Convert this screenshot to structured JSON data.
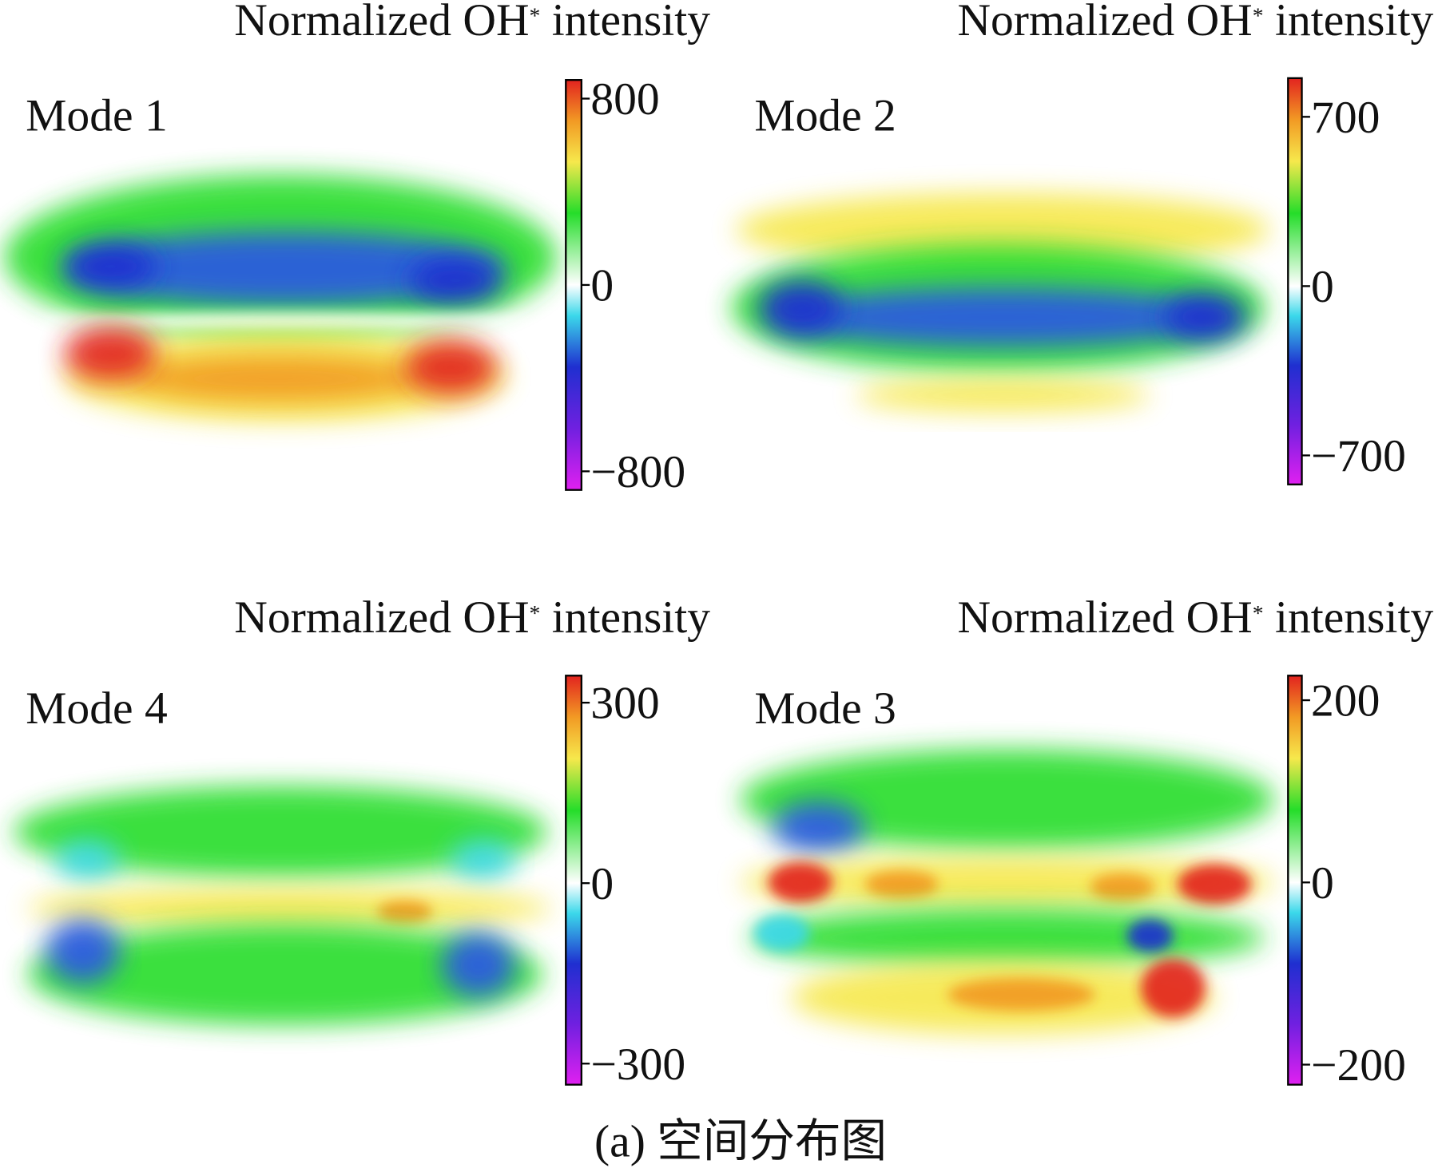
{
  "chart_data": [
    {
      "type": "heatmap",
      "title": "Mode 1",
      "colorbar_label": [
        "Normalized OH",
        "*",
        " intensity"
      ],
      "ylim": [
        -880,
        880
      ],
      "yticks": [
        {
          "value": -800,
          "label": "−800"
        },
        0,
        800
      ]
    },
    {
      "type": "heatmap",
      "title": "Mode 2",
      "colorbar_label": [
        "Normalized OH",
        "*",
        " intensity"
      ],
      "ylim": [
        -820,
        860
      ],
      "yticks": [
        {
          "value": -700,
          "label": "−700"
        },
        0,
        700
      ]
    },
    {
      "type": "heatmap",
      "title": "Mode 4",
      "colorbar_label": [
        "Normalized OH",
        "*",
        " intensity"
      ],
      "ylim": [
        -335,
        345
      ],
      "yticks": [
        {
          "value": -300,
          "label": "−300"
        },
        0,
        300
      ]
    },
    {
      "type": "heatmap",
      "title": "Mode 3",
      "colorbar_label": [
        "Normalized OH",
        "*",
        " intensity"
      ],
      "ylim": [
        -222,
        227
      ],
      "yticks": [
        {
          "value": -200,
          "label": "−200"
        },
        0,
        200
      ]
    }
  ],
  "caption": "(a) 空间分布图"
}
